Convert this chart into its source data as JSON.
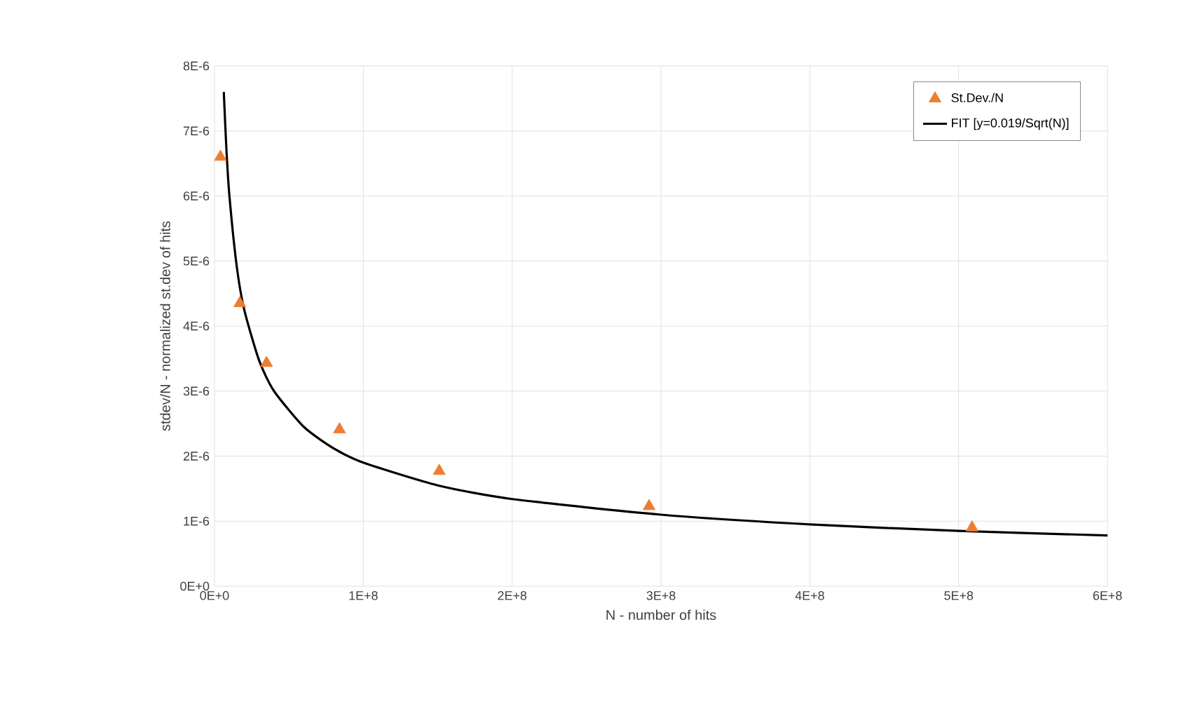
{
  "chart_data": {
    "type": "scatter",
    "xlabel": "N - number of hits",
    "ylabel": "stdev/N - normalized st.dev of hits",
    "xlim": [
      0,
      600000000
    ],
    "ylim": [
      0,
      8e-06
    ],
    "xticks": [
      {
        "value": 0,
        "label": "0E+0"
      },
      {
        "value": 100000000,
        "label": "1E+8"
      },
      {
        "value": 200000000,
        "label": "2E+8"
      },
      {
        "value": 300000000,
        "label": "3E+8"
      },
      {
        "value": 400000000,
        "label": "4E+8"
      },
      {
        "value": 500000000,
        "label": "5E+8"
      },
      {
        "value": 600000000,
        "label": "6E+8"
      }
    ],
    "yticks": [
      {
        "value": 0,
        "label": "0E+0"
      },
      {
        "value": 1e-06,
        "label": "1E-6"
      },
      {
        "value": 2e-06,
        "label": "2E-6"
      },
      {
        "value": 3e-06,
        "label": "3E-6"
      },
      {
        "value": 4e-06,
        "label": "4E-6"
      },
      {
        "value": 5e-06,
        "label": "5E-6"
      },
      {
        "value": 6e-06,
        "label": "6E-6"
      },
      {
        "value": 7e-06,
        "label": "7E-6"
      },
      {
        "value": 8e-06,
        "label": "8E-6"
      }
    ],
    "grid": true,
    "legend": "top right",
    "series": [
      {
        "name": "St.Dev./N",
        "marker": "triangle",
        "color": "#ed7d31",
        "x": [
          4000000,
          17000000,
          35000000,
          84000000,
          151000000,
          292000000,
          509000000
        ],
        "values": [
          6.6e-06,
          4.35e-06,
          3.43e-06,
          2.41e-06,
          1.77e-06,
          1.23e-06,
          9e-07
        ]
      },
      {
        "name": "FIT [y=0.019/Sqrt(N)]",
        "type": "line",
        "marker": "none",
        "line_style": "solid",
        "color": "#000000",
        "x": [
          6250000,
          8000000,
          10000000,
          15000000,
          20000000,
          30000000,
          40000000,
          60000000,
          80000000,
          100000000,
          150000000,
          200000000,
          300000000,
          400000000,
          500000000,
          600000000
        ],
        "values": [
          7.6e-06,
          6.72e-06,
          6.01e-06,
          4.91e-06,
          4.25e-06,
          3.47e-06,
          3e-06,
          2.45e-06,
          2.12e-06,
          1.9e-06,
          1.55e-06,
          1.34e-06,
          1.1e-06,
          9.5e-07,
          8.5e-07,
          7.8e-07
        ]
      }
    ]
  }
}
